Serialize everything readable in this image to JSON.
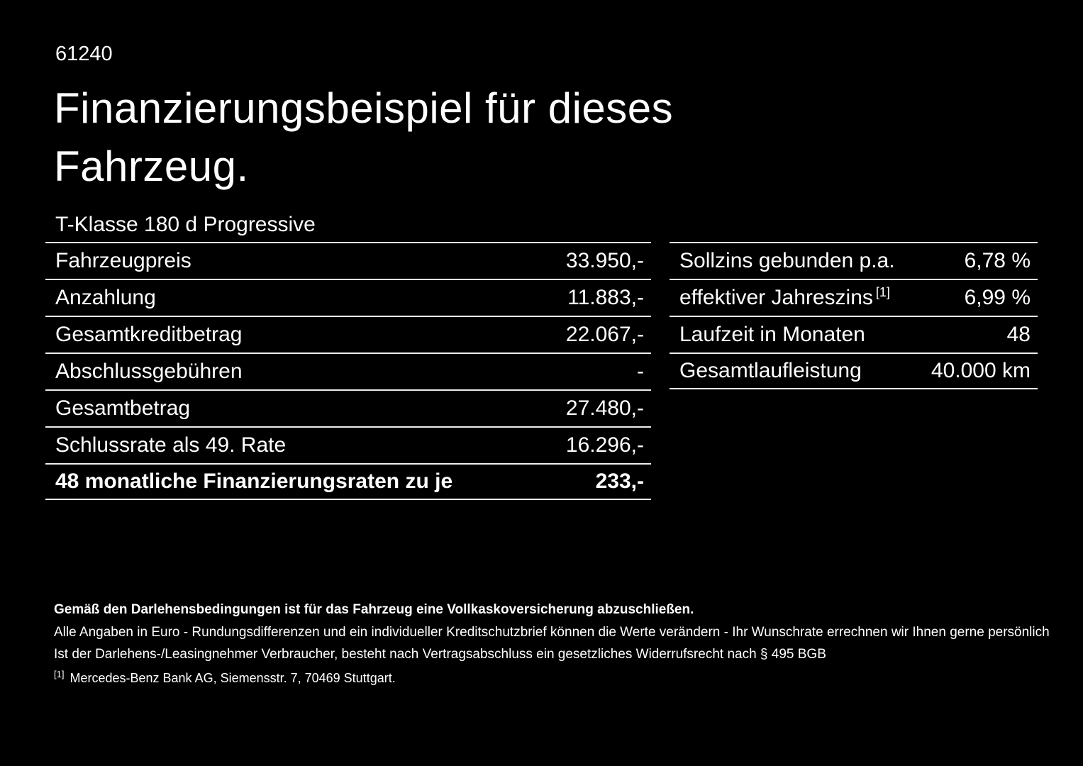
{
  "page": {
    "doc_number": "61240",
    "title": "Finanzierungsbeispiel für dieses Fahrzeug.",
    "vehicle_name": "T-Klasse 180 d Progressive"
  },
  "left_table": {
    "rows": [
      {
        "label": "Fahrzeugpreis",
        "value": "33.950,-"
      },
      {
        "label": "Anzahlung",
        "value": "11.883,-"
      },
      {
        "label": "Gesamtkreditbetrag",
        "value": "22.067,-"
      },
      {
        "label": "Abschlussgebühren",
        "value": "-"
      },
      {
        "label": "Gesamtbetrag",
        "value": "27.480,-"
      },
      {
        "label": "Schlussrate als 49. Rate",
        "value": "16.296,-"
      },
      {
        "label": "48 monatliche Finanzierungsraten zu je",
        "value": "233,-"
      }
    ]
  },
  "right_table": {
    "rows": [
      {
        "label": "Sollzins gebunden p.a.",
        "value": "6,78 %"
      },
      {
        "label": "effektiver Jahreszins",
        "footnote": "[1]",
        "value": "6,99 %"
      },
      {
        "label": "Laufzeit in Monaten",
        "value": "48"
      },
      {
        "label": "Gesamtlaufleistung",
        "value": "40.000 km"
      }
    ]
  },
  "footer": {
    "line1": "Gemäß den Darlehensbedingungen ist für das Fahrzeug eine Vollkaskoversicherung abzuschließen.",
    "line2": "Alle Angaben in Euro - Rundungsdifferenzen und ein individueller Kreditschutzbrief können die Werte verändern - Ihr Wunschrate errechnen wir Ihnen gerne persönlich",
    "line3": "Ist der Darlehens-/Leasingnehmer Verbraucher, besteht nach Vertragsabschluss ein gesetzliches Widerrufsrecht nach § 495 BGB",
    "footnote_marker": "[1]",
    "footnote_text": "Mercedes-Benz Bank AG, Siemensstr. 7, 70469 Stuttgart."
  },
  "colors": {
    "background": "#000000",
    "text": "#ffffff",
    "divider": "#ededed"
  }
}
